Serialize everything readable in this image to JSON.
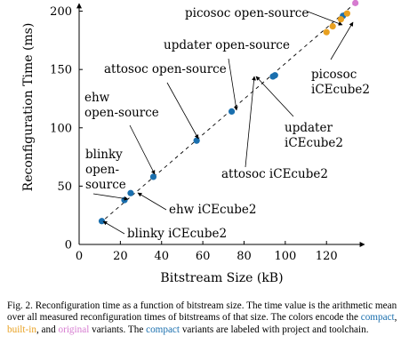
{
  "chart_data": {
    "type": "scatter",
    "xlabel": "Bitstream Size (kB)",
    "ylabel": "Reconfiguration Time (ms)",
    "xlim": [
      0,
      135
    ],
    "ylim": [
      0,
      205
    ],
    "xticks": [
      0,
      20,
      40,
      60,
      80,
      100,
      120
    ],
    "yticks": [
      0,
      50,
      100,
      150,
      200
    ],
    "grid": false,
    "trend_line": {
      "style": "dashed",
      "from": [
        10,
        18
      ],
      "to": [
        134,
        207
      ]
    },
    "series": [
      {
        "name": "compact",
        "color": "#1a6fae",
        "points": [
          {
            "x": 11,
            "y": 20
          },
          {
            "x": 22,
            "y": 38
          },
          {
            "x": 25,
            "y": 44
          },
          {
            "x": 36,
            "y": 58
          },
          {
            "x": 57,
            "y": 89
          },
          {
            "x": 74,
            "y": 114
          },
          {
            "x": 94,
            "y": 144
          },
          {
            "x": 95,
            "y": 145
          },
          {
            "x": 128,
            "y": 196
          }
        ]
      },
      {
        "name": "built-in",
        "color": "#e8a020",
        "points": [
          {
            "x": 120,
            "y": 182
          },
          {
            "x": 123,
            "y": 187
          },
          {
            "x": 127,
            "y": 193
          },
          {
            "x": 130,
            "y": 198
          }
        ]
      },
      {
        "name": "original",
        "color": "#d67bd0",
        "points": [
          {
            "x": 134,
            "y": 207
          }
        ]
      }
    ],
    "annotations": [
      {
        "lines": [
          "picosoc open-source"
        ],
        "target": {
          "x": 127,
          "y": 193
        }
      },
      {
        "lines": [
          "updater open-source"
        ],
        "target": {
          "x": 74,
          "y": 114
        }
      },
      {
        "lines": [
          "attosoc open-source"
        ],
        "target": {
          "x": 57,
          "y": 89
        }
      },
      {
        "lines": [
          "ehw",
          "open-source"
        ],
        "target": {
          "x": 36,
          "y": 58
        }
      },
      {
        "lines": [
          "blinky",
          "open-",
          "source"
        ],
        "target": {
          "x": 22,
          "y": 38
        }
      },
      {
        "lines": [
          "ehw iCEcube2"
        ],
        "target": {
          "x": 25,
          "y": 44
        }
      },
      {
        "lines": [
          "blinky iCEcube2"
        ],
        "target": {
          "x": 11,
          "y": 20
        }
      },
      {
        "lines": [
          "attosoc iCEcube2"
        ],
        "target": {
          "x": 94,
          "y": 144
        }
      },
      {
        "lines": [
          "updater",
          "iCEcube2"
        ],
        "target": {
          "x": 95,
          "y": 145
        }
      },
      {
        "lines": [
          "picosoc",
          "iCEcube2"
        ],
        "target": {
          "x": 128,
          "y": 196
        }
      }
    ]
  },
  "caption": {
    "text_1": "Fig. 2.  Reconfiguration time as a function of bitstream size. The time value is the arithmetic mean over all measured reconfiguration times of bitstreams of that size. The colors encode the ",
    "compact": "compact",
    "text_2": ", ",
    "built_in": "built-in",
    "text_3": ", and ",
    "original": "original",
    "text_4": " variants. The ",
    "compact_2": "compact",
    "text_5": " variants are labeled with project and toolchain."
  },
  "colors": {
    "compact": "#1a6fae",
    "built_in": "#e8a020",
    "original": "#d67bd0"
  }
}
